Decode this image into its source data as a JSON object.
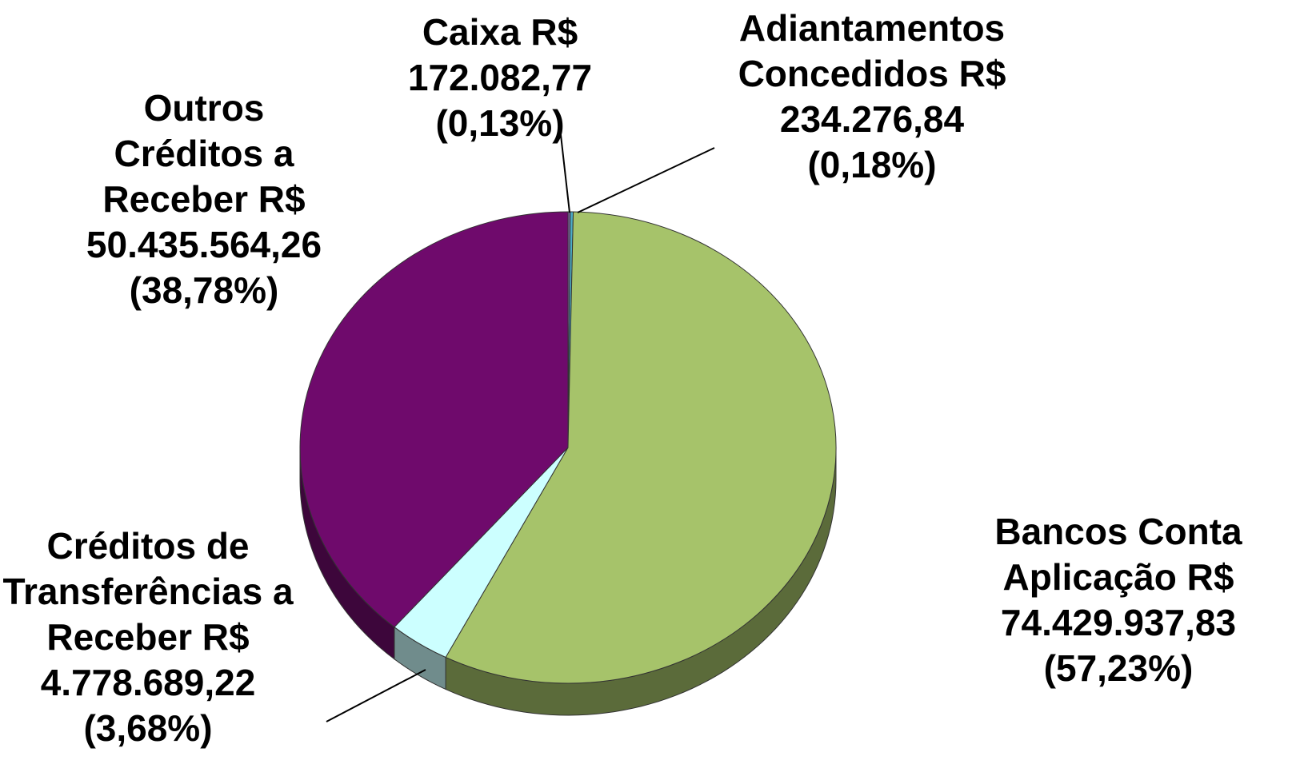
{
  "chart_data": {
    "type": "pie",
    "categories": [
      "Caixa R$",
      "Adiantamentos Concedidos R$",
      "Bancos Conta Aplicação R$",
      "Créditos de Transferências a Receber R$",
      "Outros Créditos a Receber R$"
    ],
    "values": [
      172082.77,
      234276.84,
      74429937.83,
      4778689.22,
      50435564.26
    ],
    "value_labels": [
      "172.082,77",
      "234.276,84",
      "74.429.937,83",
      "4.778.689,22",
      "50.435.564,26"
    ],
    "percentages": [
      0.13,
      0.18,
      57.23,
      3.68,
      38.78
    ],
    "percentage_labels": [
      "(0,13%)",
      "(0,18%)",
      "(57,23%)",
      "(3,68%)",
      "(38,78%)"
    ],
    "colors": [
      "#8064a2",
      "#4bacc6",
      "#a6c36a",
      "#ccffff",
      "#6f0a6c"
    ]
  }
}
